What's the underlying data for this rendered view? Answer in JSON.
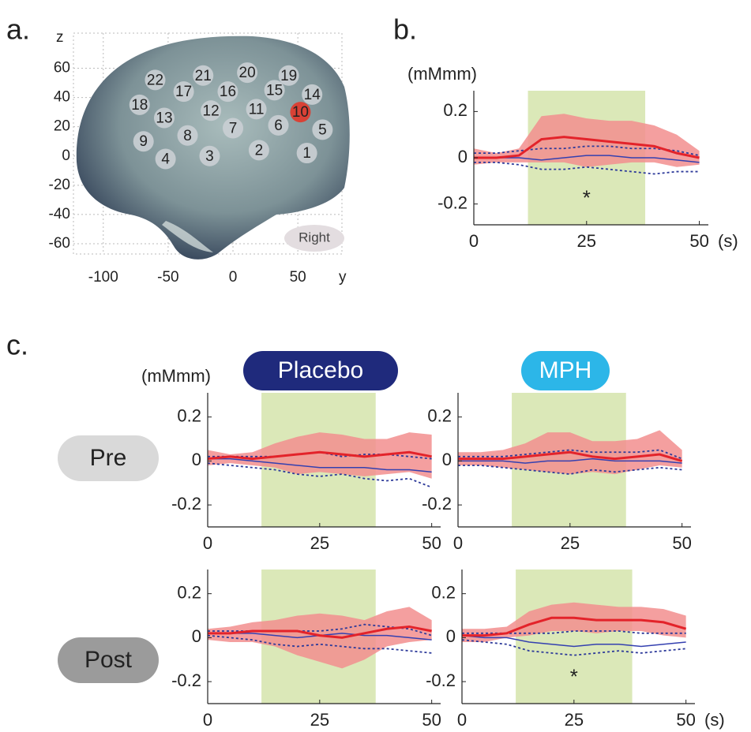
{
  "panels": {
    "a": "a.",
    "b": "b.",
    "c": "c."
  },
  "conditions": {
    "placebo": "Placebo",
    "mph": "MPH",
    "pre": "Pre",
    "post": "Post"
  },
  "chart_data": [
    {
      "type": "scatter",
      "xlabel": "y",
      "ylabel": "z",
      "annotation": "Right",
      "xlim": [
        -123,
        84
      ],
      "ylim": [
        -67,
        84
      ],
      "xticks": [
        -100,
        -50,
        0,
        50
      ],
      "yticks": [
        -60,
        -40,
        -20,
        0,
        20,
        40,
        60
      ],
      "grid": true,
      "color": "#c9ced3",
      "highlight": {
        "index": 9,
        "color": "#e03a2c"
      },
      "labels": [
        "1",
        "2",
        "3",
        "4",
        "5",
        "6",
        "7",
        "8",
        "9",
        "10",
        "11",
        "12",
        "13",
        "14",
        "15",
        "16",
        "17",
        "18",
        "19",
        "20",
        "21",
        "22"
      ],
      "x": [
        57,
        20,
        -18,
        -52,
        69,
        35,
        0,
        -35,
        -69,
        52,
        18,
        -17,
        -53,
        61,
        32,
        -4,
        -38,
        -72,
        43,
        11,
        -23,
        -60
      ],
      "values": [
        2,
        4,
        0,
        -2,
        18,
        21,
        19,
        14,
        10,
        30,
        32,
        31,
        26,
        42,
        45,
        44,
        44,
        35,
        55,
        57,
        55,
        52
      ]
    },
    {
      "type": "band-line",
      "ylabel": "(mMmm)",
      "xunit": "(s)",
      "annotation": "*",
      "xlim": [
        0,
        52
      ],
      "ylim": [
        -0.29,
        0.29
      ],
      "xticks": [
        0,
        25,
        50
      ],
      "yticks": [
        -0.2,
        0,
        0.2
      ],
      "highlight_x": [
        12,
        38
      ],
      "x": [
        0,
        5,
        10,
        15,
        20,
        25,
        30,
        35,
        40,
        45,
        50
      ],
      "series": [
        {
          "style": "band",
          "color": "#f28e8e",
          "upper": [
            0.04,
            0.02,
            0.04,
            0.18,
            0.19,
            0.17,
            0.16,
            0.16,
            0.14,
            0.1,
            0.03
          ],
          "lower": [
            -0.03,
            -0.02,
            -0.02,
            -0.02,
            -0.02,
            -0.04,
            -0.03,
            -0.02,
            -0.02,
            -0.04,
            -0.03
          ]
        },
        {
          "style": "dotted",
          "color": "#2d3a9a",
          "values": [
            0.02,
            0.02,
            0.03,
            0.04,
            0.04,
            0.05,
            0.05,
            0.04,
            0.04,
            0.03,
            0.01
          ]
        },
        {
          "style": "dotted",
          "color": "#2d3a9a",
          "values": [
            -0.02,
            -0.02,
            -0.03,
            -0.05,
            -0.05,
            -0.04,
            -0.05,
            -0.06,
            -0.07,
            -0.06,
            -0.06
          ]
        },
        {
          "style": "line",
          "color": "#3440b0",
          "values": [
            0,
            0,
            0,
            -0.01,
            0,
            0.01,
            0.01,
            0,
            0,
            -0.01,
            -0.02
          ]
        },
        {
          "style": "line",
          "color": "#e3232a",
          "values": [
            0,
            0,
            0.01,
            0.08,
            0.09,
            0.08,
            0.07,
            0.06,
            0.05,
            0.02,
            0
          ]
        }
      ]
    },
    {
      "type": "band-line",
      "ylabel": "(mMmm)",
      "xlim": [
        0,
        52
      ],
      "ylim": [
        -0.3,
        0.31
      ],
      "xticks": [
        0,
        25,
        50
      ],
      "yticks": [
        -0.2,
        0,
        0.2
      ],
      "highlight_x": [
        12,
        37.5
      ],
      "x": [
        0,
        5,
        10,
        15,
        20,
        25,
        30,
        35,
        40,
        45,
        50
      ],
      "series": [
        {
          "style": "band",
          "color": "#f28e8e",
          "upper": [
            0.05,
            0.03,
            0.04,
            0.08,
            0.11,
            0.13,
            0.12,
            0.1,
            0.1,
            0.13,
            0.12
          ],
          "lower": [
            -0.02,
            -0.01,
            -0.02,
            -0.03,
            -0.06,
            -0.05,
            -0.06,
            -0.07,
            -0.06,
            -0.05,
            -0.08
          ]
        },
        {
          "style": "dotted",
          "color": "#2d3a9a",
          "values": [
            0.02,
            0.02,
            0.02,
            0.02,
            0.03,
            0.04,
            0.02,
            0.03,
            0.03,
            0.02,
            0.01
          ]
        },
        {
          "style": "dotted",
          "color": "#2d3a9a",
          "values": [
            -0.01,
            -0.02,
            -0.03,
            -0.04,
            -0.06,
            -0.07,
            -0.06,
            -0.08,
            -0.09,
            -0.08,
            -0.12
          ]
        },
        {
          "style": "line",
          "color": "#3440b0",
          "values": [
            0.01,
            0.01,
            0,
            -0.01,
            -0.02,
            -0.03,
            -0.03,
            -0.03,
            -0.04,
            -0.04,
            -0.05
          ]
        },
        {
          "style": "line",
          "color": "#e3232a",
          "values": [
            0.01,
            0.02,
            0.01,
            0.02,
            0.03,
            0.04,
            0.03,
            0.02,
            0.03,
            0.04,
            0.02
          ]
        }
      ]
    },
    {
      "type": "band-line",
      "xlim": [
        0,
        52
      ],
      "ylim": [
        -0.3,
        0.31
      ],
      "xticks": [
        0,
        25,
        50
      ],
      "yticks": [
        -0.2,
        0,
        0.2
      ],
      "highlight_x": [
        12,
        37.5
      ],
      "x": [
        0,
        5,
        10,
        15,
        20,
        25,
        30,
        35,
        40,
        45,
        50
      ],
      "series": [
        {
          "style": "band",
          "color": "#f28e8e",
          "upper": [
            0.04,
            0.04,
            0.05,
            0.08,
            0.13,
            0.13,
            0.09,
            0.09,
            0.1,
            0.14,
            0.05
          ],
          "lower": [
            -0.02,
            -0.02,
            -0.03,
            -0.04,
            -0.05,
            -0.06,
            -0.05,
            -0.06,
            -0.04,
            -0.02,
            -0.03
          ]
        },
        {
          "style": "dotted",
          "color": "#2d3a9a",
          "values": [
            0.02,
            0.02,
            0.02,
            0.03,
            0.04,
            0.05,
            0.04,
            0.04,
            0.04,
            0.05,
            0.01
          ]
        },
        {
          "style": "dotted",
          "color": "#2d3a9a",
          "values": [
            -0.02,
            -0.02,
            -0.03,
            -0.04,
            -0.05,
            -0.06,
            -0.04,
            -0.05,
            -0.04,
            -0.03,
            -0.04
          ]
        },
        {
          "style": "line",
          "color": "#3440b0",
          "values": [
            0,
            0,
            0,
            -0.01,
            0,
            0,
            0.01,
            0,
            0,
            0,
            -0.01
          ]
        },
        {
          "style": "line",
          "color": "#e3232a",
          "values": [
            0.01,
            0.01,
            0.01,
            0.02,
            0.03,
            0.04,
            0.02,
            0.01,
            0.02,
            0.03,
            0
          ]
        }
      ]
    },
    {
      "type": "band-line",
      "xlim": [
        0,
        52
      ],
      "ylim": [
        -0.3,
        0.31
      ],
      "xticks": [
        0,
        25,
        50
      ],
      "yticks": [
        -0.2,
        0,
        0.2
      ],
      "highlight_x": [
        12,
        37.5
      ],
      "x": [
        0,
        5,
        10,
        15,
        20,
        25,
        30,
        35,
        40,
        45,
        50
      ],
      "series": [
        {
          "style": "band",
          "color": "#f28e8e",
          "upper": [
            0.04,
            0.05,
            0.07,
            0.08,
            0.1,
            0.11,
            0.1,
            0.08,
            0.12,
            0.14,
            0.08
          ],
          "lower": [
            -0.01,
            -0.02,
            -0.02,
            -0.04,
            -0.08,
            -0.11,
            -0.14,
            -0.1,
            -0.04,
            -0.02,
            -0.01
          ]
        },
        {
          "style": "dotted",
          "color": "#2d3a9a",
          "values": [
            0.03,
            0.03,
            0.03,
            0.03,
            0.03,
            0.03,
            0.04,
            0.06,
            0.05,
            0.04,
            0.01
          ]
        },
        {
          "style": "dotted",
          "color": "#2d3a9a",
          "values": [
            0.01,
            0,
            -0.01,
            -0.03,
            -0.04,
            -0.03,
            -0.04,
            -0.05,
            -0.05,
            -0.06,
            -0.07
          ]
        },
        {
          "style": "line",
          "color": "#3440b0",
          "values": [
            0.02,
            0.02,
            0.02,
            0.01,
            0,
            0.01,
            0.02,
            0.01,
            0.01,
            0,
            -0.01
          ]
        },
        {
          "style": "line",
          "color": "#e3232a",
          "values": [
            0.02,
            0.02,
            0.03,
            0.03,
            0.03,
            0.01,
            0,
            0.02,
            0.04,
            0.05,
            0.03
          ]
        }
      ]
    },
    {
      "type": "band-line",
      "xunit": "(s)",
      "annotation": "*",
      "xlim": [
        0,
        52
      ],
      "ylim": [
        -0.3,
        0.31
      ],
      "xticks": [
        0,
        25,
        50
      ],
      "yticks": [
        -0.2,
        0,
        0.2
      ],
      "highlight_x": [
        12,
        38
      ],
      "x": [
        0,
        5,
        10,
        15,
        20,
        25,
        30,
        35,
        40,
        45,
        50
      ],
      "series": [
        {
          "style": "band",
          "color": "#f28e8e",
          "upper": [
            0.04,
            0.04,
            0.05,
            0.12,
            0.15,
            0.16,
            0.15,
            0.14,
            0.14,
            0.13,
            0.1
          ],
          "lower": [
            -0.02,
            -0.02,
            0,
            0.01,
            0.03,
            0.03,
            0.02,
            0.03,
            0.03,
            0.01,
            0
          ]
        },
        {
          "style": "dotted",
          "color": "#2d3a9a",
          "values": [
            0.02,
            0.02,
            0.02,
            0.02,
            0.02,
            0.03,
            0.03,
            0.03,
            0.02,
            0.02,
            0.02
          ]
        },
        {
          "style": "dotted",
          "color": "#2d3a9a",
          "values": [
            -0.01,
            -0.02,
            -0.03,
            -0.06,
            -0.07,
            -0.08,
            -0.07,
            -0.06,
            -0.07,
            -0.06,
            -0.05
          ]
        },
        {
          "style": "line",
          "color": "#3440b0",
          "values": [
            0.01,
            0,
            0,
            -0.02,
            -0.03,
            -0.04,
            -0.03,
            -0.03,
            -0.04,
            -0.03,
            -0.02
          ]
        },
        {
          "style": "line",
          "color": "#e3232a",
          "values": [
            0.01,
            0.01,
            0.02,
            0.06,
            0.09,
            0.09,
            0.08,
            0.08,
            0.08,
            0.07,
            0.04
          ]
        }
      ]
    }
  ]
}
